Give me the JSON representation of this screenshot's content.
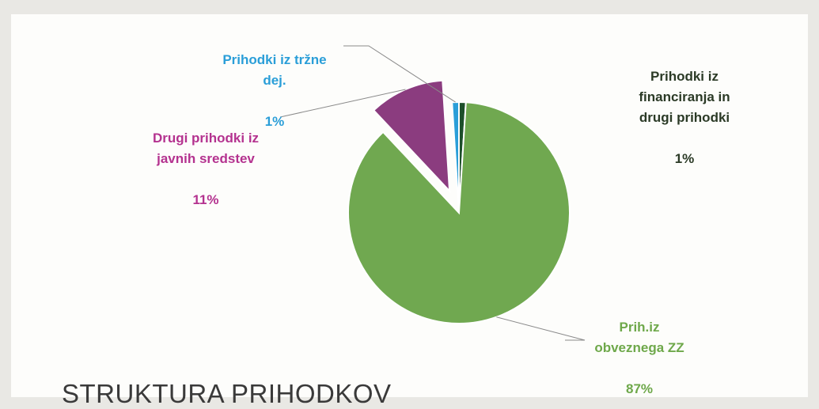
{
  "title": "STRUKTURA PRIHODKOV",
  "chart_data": {
    "type": "pie",
    "title": "STRUKTURA PRIHODKOV",
    "slices": [
      {
        "label": "Prih.iz obveznega ZZ",
        "label_display": "Prih.iz\nobveznega ZZ",
        "value": 87,
        "value_label": "87%",
        "color": "#70a850",
        "exploded": false
      },
      {
        "label": "Drugi prihodki iz javnih sredstev",
        "label_display": "Drugi prihodki iz\njavnih sredstev",
        "value": 11,
        "value_label": "11%",
        "color": "#8b3c7f",
        "exploded": true
      },
      {
        "label": "Prihodki iz tržne dej.",
        "label_display": "Prihodki iz tržne\ndej.",
        "value": 1,
        "value_label": "1%",
        "color": "#2a9ed8",
        "exploded": false
      },
      {
        "label": "Prihodki iz financiranja in drugi prihodki",
        "label_display": "Prihodki iz\nfinanciranja in\ndrugi prihodki",
        "value": 1,
        "value_label": "1%",
        "color": "#1d4f2a",
        "exploded": false
      }
    ]
  },
  "label_colors": [
    "#6ea84a",
    "#b4328f",
    "#2a9ed8",
    "#2b3a26"
  ]
}
